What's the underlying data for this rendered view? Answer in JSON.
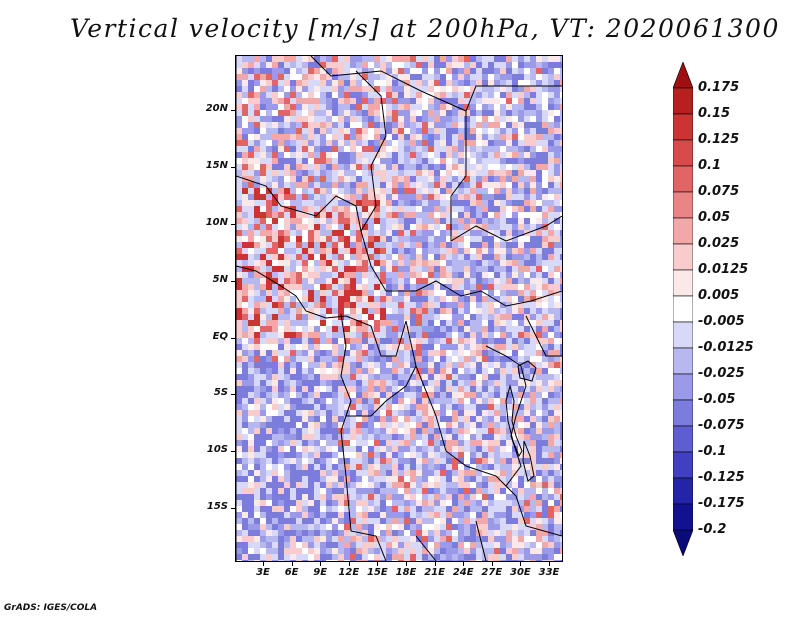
{
  "title": "Vertical velocity [m/s] at 200hPa, VT: 2020061300",
  "footer": "GrADS: IGES/COLA",
  "map": {
    "region": "Central Africa",
    "variable": "Vertical velocity",
    "units": "m/s",
    "level": "200hPa",
    "valid_time": "2020061300",
    "lat_labels": [
      "20N",
      "15N",
      "10N",
      "5N",
      "EQ",
      "5S",
      "10S",
      "15S"
    ],
    "lon_labels": [
      "3E",
      "6E",
      "9E",
      "12E",
      "15E",
      "18E",
      "21E",
      "24E",
      "27E",
      "30E",
      "33E"
    ]
  },
  "colorbar": {
    "labels": [
      "0.175",
      "0.15",
      "0.125",
      "0.1",
      "0.075",
      "0.05",
      "0.025",
      "0.0125",
      "0.005",
      "-0.005",
      "-0.0125",
      "-0.025",
      "-0.05",
      "-0.075",
      "-0.1",
      "-0.125",
      "-0.175",
      "-0.2"
    ],
    "colors": [
      "#a01010",
      "#b82020",
      "#cc3333",
      "#d94a4a",
      "#e26565",
      "#ea8585",
      "#f2a8a8",
      "#f8cccc",
      "#fbe8e8",
      "#ffffff",
      "#d8d8f8",
      "#b8b8f0",
      "#9a9ae8",
      "#7c7cdc",
      "#5e5ed0",
      "#4040c0",
      "#2424a8",
      "#121290",
      "#0a0a78"
    ]
  }
}
